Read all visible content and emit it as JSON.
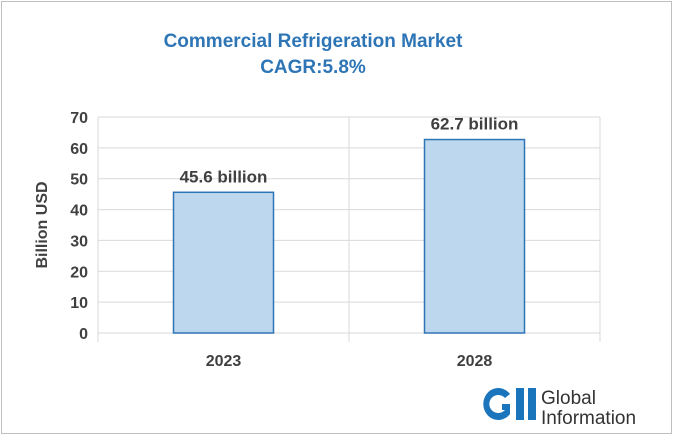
{
  "colors": {
    "title": "#2e75b6",
    "bar_fill": "#bdd7ee",
    "bar_stroke": "#2e75b6",
    "grid": "#d9d9d9",
    "text": "#404040",
    "logo_blue": "#1b75bc"
  },
  "chart_data": {
    "type": "bar",
    "title": "Commercial Refrigeration Market",
    "subtitle": "CAGR:5.8%",
    "xlabel": "",
    "ylabel": "Billion USD",
    "categories": [
      "2023",
      "2028"
    ],
    "values": [
      45.6,
      62.7
    ],
    "data_labels": [
      "45.6 billion",
      "62.7 billion"
    ],
    "ylim": [
      0,
      70
    ],
    "yticks": [
      "0",
      "10",
      "20",
      "30",
      "40",
      "50",
      "60",
      "70"
    ],
    "grid": true,
    "legend": "none"
  },
  "logo": {
    "mark": "GII",
    "line1": "Global",
    "line2": "Information"
  }
}
